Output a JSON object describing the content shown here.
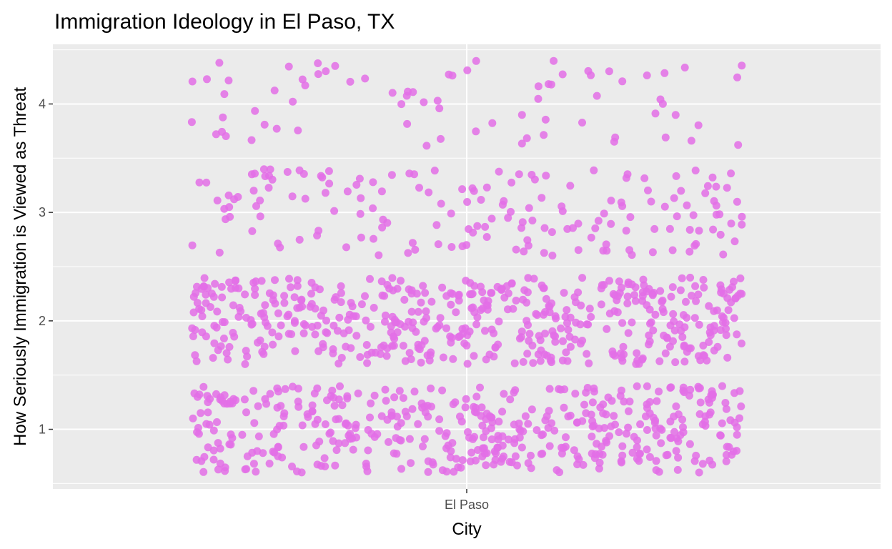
{
  "chart_data": {
    "type": "scatter",
    "subtype": "jitter",
    "title": "Immigration Ideology in El Paso, TX",
    "xlabel": "City",
    "ylabel": "How Seriously Immigration is Viewed as Threat",
    "categories": [
      "El Paso"
    ],
    "y_ticks": [
      "1",
      "2",
      "3",
      "4"
    ],
    "ylim": [
      0.45,
      4.55
    ],
    "jitter": {
      "x_halfwidth": 0.4,
      "y_halfwidth": 0.4
    },
    "point_color": "#E36FE6",
    "point_opacity": 0.85,
    "panel_background": "#EBEBEB",
    "grid": true,
    "legend": "none",
    "series": [
      {
        "category": "El Paso",
        "y": 1,
        "count": 470
      },
      {
        "category": "El Paso",
        "y": 2,
        "count": 520
      },
      {
        "category": "El Paso",
        "y": 3,
        "count": 170
      },
      {
        "category": "El Paso",
        "y": 4,
        "count": 75
      }
    ]
  }
}
